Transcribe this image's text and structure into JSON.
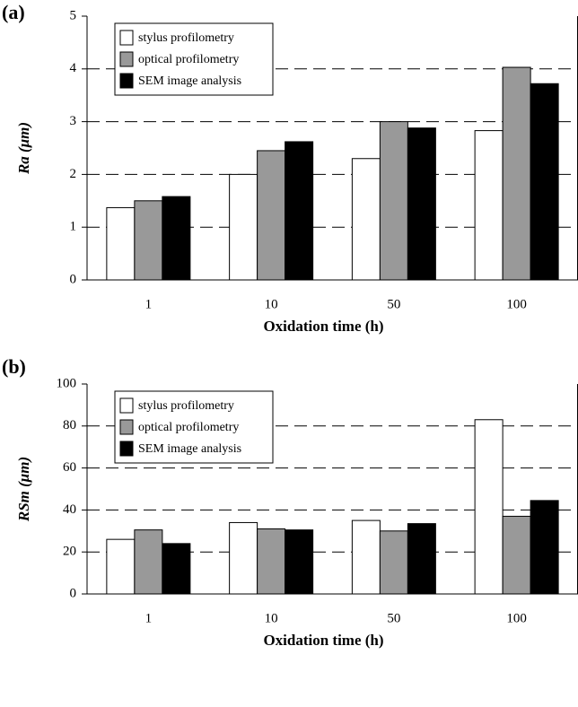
{
  "chart_data": [
    {
      "type": "bar",
      "panel_label": "(a)",
      "x_label": "Oxidation time (h)",
      "y_label": "Ra (μm)",
      "categories": [
        "1",
        "10",
        "50",
        "100"
      ],
      "series": [
        {
          "name": "stylus profilometry",
          "color": "#ffffff",
          "values": [
            1.37,
            2.0,
            2.3,
            2.83
          ]
        },
        {
          "name": "optical profilometry",
          "color": "#999999",
          "values": [
            1.5,
            2.45,
            3.0,
            4.03
          ]
        },
        {
          "name": "SEM image analysis",
          "color": "#000000",
          "values": [
            1.58,
            2.62,
            2.88,
            3.72
          ]
        }
      ],
      "ylim": [
        0,
        5
      ],
      "yticks": [
        0,
        1,
        2,
        3,
        4,
        5
      ],
      "grid": true,
      "legend": "top-left"
    },
    {
      "type": "bar",
      "panel_label": "(b)",
      "x_label": "Oxidation time (h)",
      "y_label": "RSm (μm)",
      "categories": [
        "1",
        "10",
        "50",
        "100"
      ],
      "series": [
        {
          "name": "stylus profilometry",
          "color": "#ffffff",
          "values": [
            26,
            34,
            35,
            83
          ]
        },
        {
          "name": "optical profilometry",
          "color": "#999999",
          "values": [
            30.5,
            31,
            30,
            37
          ]
        },
        {
          "name": "SEM image analysis",
          "color": "#000000",
          "values": [
            24,
            30.5,
            33.5,
            44.5
          ]
        }
      ],
      "ylim": [
        0,
        100
      ],
      "yticks": [
        0,
        20,
        40,
        60,
        80,
        100
      ],
      "grid": true,
      "legend": "top-left"
    }
  ]
}
